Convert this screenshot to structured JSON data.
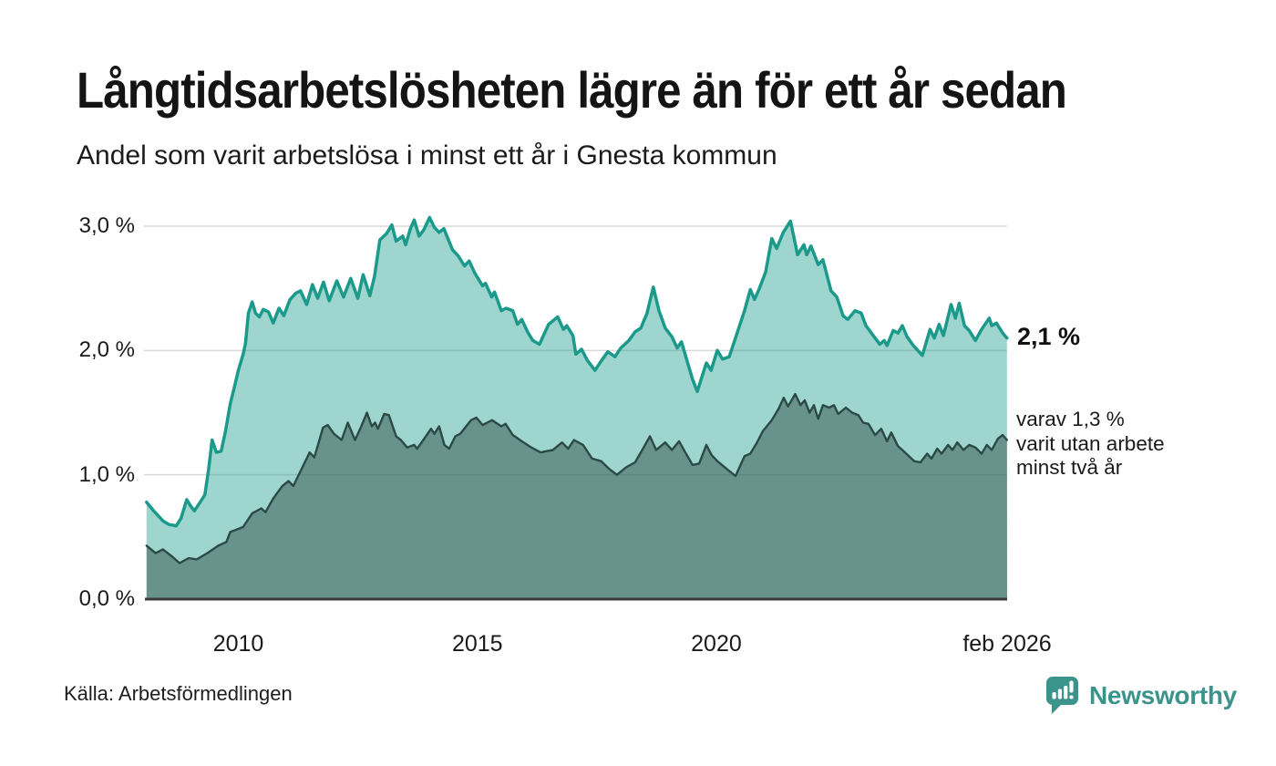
{
  "header": {
    "title": "Långtidsarbetslösheten lägre än för ett år sedan",
    "subtitle": "Andel som varit arbetslösa i minst ett år i Gnesta kommun"
  },
  "chart_data": {
    "type": "area",
    "title": "Långtidsarbetslösheten lägre än för ett år sedan",
    "subtitle": "Andel som varit arbetslösa i minst ett år i Gnesta kommun",
    "x_domain": [
      2008.083,
      2026.083
    ],
    "y_domain": [
      0,
      3
    ],
    "grid": "horizontal",
    "legend_position": "none",
    "colors": {
      "grid": "#d9d9d9",
      "axis": "#3b3b3b",
      "background": "#ffffff"
    },
    "y_ticks": [
      {
        "value": 0,
        "label": "0,0 %"
      },
      {
        "value": 1,
        "label": "1,0 %"
      },
      {
        "value": 2,
        "label": "2,0 %"
      },
      {
        "value": 3,
        "label": "3,0 %"
      }
    ],
    "x_ticks": [
      {
        "t": 2010,
        "label": "2010"
      },
      {
        "t": 2015,
        "label": "2015"
      },
      {
        "t": 2020,
        "label": "2020"
      },
      {
        "t": 2026.083,
        "label": "feb 2026"
      }
    ],
    "annotations": {
      "total": "2,1 %",
      "detail_line1": "varav 1,3 %",
      "detail_line2": "varit utan arbete",
      "detail_line3": "minst två år"
    },
    "series": [
      {
        "name": "Andel arbetslösa minst ett år",
        "latest_value": 2.1,
        "color": "#1b9a8c",
        "fill": "#1b9a8c",
        "fill_opacity": 0.42,
        "stroke_width": 3.5,
        "points": [
          [
            2008.08,
            0.78
          ],
          [
            2008.25,
            0.7
          ],
          [
            2008.42,
            0.63
          ],
          [
            2008.55,
            0.6
          ],
          [
            2008.7,
            0.59
          ],
          [
            2008.8,
            0.65
          ],
          [
            2008.92,
            0.8
          ],
          [
            2009.0,
            0.75
          ],
          [
            2009.08,
            0.71
          ],
          [
            2009.2,
            0.78
          ],
          [
            2009.3,
            0.84
          ],
          [
            2009.38,
            1.05
          ],
          [
            2009.45,
            1.28
          ],
          [
            2009.54,
            1.18
          ],
          [
            2009.64,
            1.19
          ],
          [
            2009.73,
            1.35
          ],
          [
            2009.83,
            1.57
          ],
          [
            2009.92,
            1.71
          ],
          [
            2010.0,
            1.84
          ],
          [
            2010.1,
            1.97
          ],
          [
            2010.15,
            2.06
          ],
          [
            2010.21,
            2.3
          ],
          [
            2010.29,
            2.39
          ],
          [
            2010.36,
            2.3
          ],
          [
            2010.44,
            2.27
          ],
          [
            2010.52,
            2.33
          ],
          [
            2010.63,
            2.31
          ],
          [
            2010.73,
            2.22
          ],
          [
            2010.85,
            2.34
          ],
          [
            2010.95,
            2.28
          ],
          [
            2011.08,
            2.41
          ],
          [
            2011.2,
            2.46
          ],
          [
            2011.3,
            2.48
          ],
          [
            2011.43,
            2.37
          ],
          [
            2011.55,
            2.53
          ],
          [
            2011.66,
            2.42
          ],
          [
            2011.78,
            2.55
          ],
          [
            2011.9,
            2.4
          ],
          [
            2012.06,
            2.56
          ],
          [
            2012.2,
            2.43
          ],
          [
            2012.35,
            2.58
          ],
          [
            2012.5,
            2.42
          ],
          [
            2012.61,
            2.61
          ],
          [
            2012.75,
            2.44
          ],
          [
            2012.85,
            2.6
          ],
          [
            2012.96,
            2.89
          ],
          [
            2013.1,
            2.94
          ],
          [
            2013.21,
            3.01
          ],
          [
            2013.3,
            2.88
          ],
          [
            2013.44,
            2.92
          ],
          [
            2013.5,
            2.85
          ],
          [
            2013.6,
            2.98
          ],
          [
            2013.68,
            3.05
          ],
          [
            2013.78,
            2.92
          ],
          [
            2013.88,
            2.97
          ],
          [
            2014.0,
            3.07
          ],
          [
            2014.1,
            2.99
          ],
          [
            2014.2,
            2.95
          ],
          [
            2014.3,
            2.98
          ],
          [
            2014.48,
            2.81
          ],
          [
            2014.6,
            2.76
          ],
          [
            2014.73,
            2.68
          ],
          [
            2014.83,
            2.72
          ],
          [
            2014.95,
            2.62
          ],
          [
            2015.11,
            2.52
          ],
          [
            2015.17,
            2.54
          ],
          [
            2015.3,
            2.43
          ],
          [
            2015.36,
            2.47
          ],
          [
            2015.5,
            2.32
          ],
          [
            2015.6,
            2.34
          ],
          [
            2015.74,
            2.32
          ],
          [
            2015.84,
            2.21
          ],
          [
            2015.93,
            2.25
          ],
          [
            2016.05,
            2.15
          ],
          [
            2016.16,
            2.08
          ],
          [
            2016.3,
            2.05
          ],
          [
            2016.49,
            2.21
          ],
          [
            2016.68,
            2.27
          ],
          [
            2016.8,
            2.17
          ],
          [
            2016.87,
            2.2
          ],
          [
            2017.0,
            2.12
          ],
          [
            2017.06,
            1.97
          ],
          [
            2017.18,
            2.01
          ],
          [
            2017.3,
            1.92
          ],
          [
            2017.46,
            1.84
          ],
          [
            2017.6,
            1.92
          ],
          [
            2017.73,
            1.99
          ],
          [
            2017.88,
            1.95
          ],
          [
            2018.0,
            2.02
          ],
          [
            2018.17,
            2.08
          ],
          [
            2018.3,
            2.15
          ],
          [
            2018.42,
            2.18
          ],
          [
            2018.55,
            2.3
          ],
          [
            2018.68,
            2.51
          ],
          [
            2018.8,
            2.32
          ],
          [
            2018.93,
            2.18
          ],
          [
            2019.07,
            2.11
          ],
          [
            2019.18,
            2.02
          ],
          [
            2019.27,
            2.07
          ],
          [
            2019.4,
            1.9
          ],
          [
            2019.5,
            1.77
          ],
          [
            2019.6,
            1.67
          ],
          [
            2019.79,
            1.9
          ],
          [
            2019.89,
            1.84
          ],
          [
            2020.02,
            2.0
          ],
          [
            2020.13,
            1.93
          ],
          [
            2020.27,
            1.95
          ],
          [
            2020.46,
            2.17
          ],
          [
            2020.59,
            2.32
          ],
          [
            2020.71,
            2.49
          ],
          [
            2020.8,
            2.41
          ],
          [
            2020.9,
            2.5
          ],
          [
            2021.03,
            2.63
          ],
          [
            2021.16,
            2.9
          ],
          [
            2021.26,
            2.82
          ],
          [
            2021.4,
            2.95
          ],
          [
            2021.55,
            3.04
          ],
          [
            2021.7,
            2.77
          ],
          [
            2021.83,
            2.85
          ],
          [
            2021.89,
            2.77
          ],
          [
            2021.98,
            2.84
          ],
          [
            2022.13,
            2.69
          ],
          [
            2022.23,
            2.73
          ],
          [
            2022.4,
            2.48
          ],
          [
            2022.52,
            2.43
          ],
          [
            2022.65,
            2.28
          ],
          [
            2022.75,
            2.25
          ],
          [
            2022.9,
            2.32
          ],
          [
            2023.03,
            2.3
          ],
          [
            2023.13,
            2.2
          ],
          [
            2023.32,
            2.1
          ],
          [
            2023.42,
            2.05
          ],
          [
            2023.51,
            2.08
          ],
          [
            2023.57,
            2.04
          ],
          [
            2023.7,
            2.16
          ],
          [
            2023.8,
            2.14
          ],
          [
            2023.89,
            2.2
          ],
          [
            2023.99,
            2.11
          ],
          [
            2024.12,
            2.04
          ],
          [
            2024.31,
            1.96
          ],
          [
            2024.47,
            2.17
          ],
          [
            2024.56,
            2.1
          ],
          [
            2024.66,
            2.21
          ],
          [
            2024.75,
            2.12
          ],
          [
            2024.91,
            2.37
          ],
          [
            2025.0,
            2.26
          ],
          [
            2025.08,
            2.38
          ],
          [
            2025.19,
            2.2
          ],
          [
            2025.29,
            2.16
          ],
          [
            2025.42,
            2.08
          ],
          [
            2025.55,
            2.17
          ],
          [
            2025.71,
            2.26
          ],
          [
            2025.76,
            2.2
          ],
          [
            2025.86,
            2.22
          ],
          [
            2025.99,
            2.14
          ],
          [
            2026.08,
            2.1
          ]
        ]
      },
      {
        "name": "varav utan arbete minst två år",
        "latest_value": 1.3,
        "color": "#2b4945",
        "fill": "#2b4945",
        "fill_opacity": 0.47,
        "stroke_width": 2.4,
        "points": [
          [
            2008.08,
            0.43
          ],
          [
            2008.27,
            0.37
          ],
          [
            2008.42,
            0.4
          ],
          [
            2008.62,
            0.34
          ],
          [
            2008.77,
            0.29
          ],
          [
            2008.96,
            0.33
          ],
          [
            2009.13,
            0.32
          ],
          [
            2009.35,
            0.37
          ],
          [
            2009.58,
            0.43
          ],
          [
            2009.75,
            0.46
          ],
          [
            2009.83,
            0.54
          ],
          [
            2010.1,
            0.58
          ],
          [
            2010.29,
            0.69
          ],
          [
            2010.48,
            0.73
          ],
          [
            2010.57,
            0.7
          ],
          [
            2010.73,
            0.81
          ],
          [
            2010.92,
            0.91
          ],
          [
            2011.05,
            0.95
          ],
          [
            2011.15,
            0.91
          ],
          [
            2011.34,
            1.06
          ],
          [
            2011.49,
            1.18
          ],
          [
            2011.59,
            1.14
          ],
          [
            2011.77,
            1.38
          ],
          [
            2011.87,
            1.4
          ],
          [
            2012.0,
            1.33
          ],
          [
            2012.16,
            1.28
          ],
          [
            2012.29,
            1.42
          ],
          [
            2012.44,
            1.28
          ],
          [
            2012.56,
            1.38
          ],
          [
            2012.69,
            1.5
          ],
          [
            2012.79,
            1.39
          ],
          [
            2012.86,
            1.42
          ],
          [
            2012.92,
            1.37
          ],
          [
            2013.05,
            1.49
          ],
          [
            2013.15,
            1.48
          ],
          [
            2013.3,
            1.31
          ],
          [
            2013.4,
            1.28
          ],
          [
            2013.53,
            1.22
          ],
          [
            2013.68,
            1.24
          ],
          [
            2013.74,
            1.21
          ],
          [
            2013.87,
            1.28
          ],
          [
            2014.03,
            1.37
          ],
          [
            2014.1,
            1.33
          ],
          [
            2014.2,
            1.39
          ],
          [
            2014.31,
            1.24
          ],
          [
            2014.41,
            1.21
          ],
          [
            2014.54,
            1.31
          ],
          [
            2014.64,
            1.33
          ],
          [
            2014.87,
            1.44
          ],
          [
            2014.98,
            1.46
          ],
          [
            2015.11,
            1.4
          ],
          [
            2015.31,
            1.44
          ],
          [
            2015.5,
            1.39
          ],
          [
            2015.59,
            1.41
          ],
          [
            2015.74,
            1.32
          ],
          [
            2015.93,
            1.27
          ],
          [
            2016.13,
            1.22
          ],
          [
            2016.32,
            1.18
          ],
          [
            2016.58,
            1.2
          ],
          [
            2016.77,
            1.26
          ],
          [
            2016.9,
            1.21
          ],
          [
            2017.02,
            1.28
          ],
          [
            2017.21,
            1.24
          ],
          [
            2017.4,
            1.13
          ],
          [
            2017.59,
            1.11
          ],
          [
            2017.75,
            1.05
          ],
          [
            2017.92,
            1.0
          ],
          [
            2018.11,
            1.06
          ],
          [
            2018.3,
            1.1
          ],
          [
            2018.45,
            1.2
          ],
          [
            2018.61,
            1.31
          ],
          [
            2018.74,
            1.2
          ],
          [
            2018.93,
            1.26
          ],
          [
            2019.07,
            1.2
          ],
          [
            2019.22,
            1.27
          ],
          [
            2019.35,
            1.18
          ],
          [
            2019.5,
            1.08
          ],
          [
            2019.64,
            1.09
          ],
          [
            2019.79,
            1.24
          ],
          [
            2019.9,
            1.16
          ],
          [
            2020.02,
            1.11
          ],
          [
            2020.21,
            1.05
          ],
          [
            2020.4,
            0.99
          ],
          [
            2020.59,
            1.15
          ],
          [
            2020.71,
            1.17
          ],
          [
            2020.85,
            1.26
          ],
          [
            2020.97,
            1.35
          ],
          [
            2021.16,
            1.44
          ],
          [
            2021.3,
            1.53
          ],
          [
            2021.41,
            1.62
          ],
          [
            2021.5,
            1.55
          ],
          [
            2021.65,
            1.65
          ],
          [
            2021.76,
            1.56
          ],
          [
            2021.85,
            1.6
          ],
          [
            2021.95,
            1.5
          ],
          [
            2022.04,
            1.56
          ],
          [
            2022.13,
            1.45
          ],
          [
            2022.23,
            1.56
          ],
          [
            2022.36,
            1.54
          ],
          [
            2022.46,
            1.56
          ],
          [
            2022.55,
            1.49
          ],
          [
            2022.71,
            1.54
          ],
          [
            2022.84,
            1.5
          ],
          [
            2022.97,
            1.48
          ],
          [
            2023.07,
            1.42
          ],
          [
            2023.18,
            1.41
          ],
          [
            2023.32,
            1.32
          ],
          [
            2023.45,
            1.37
          ],
          [
            2023.57,
            1.27
          ],
          [
            2023.66,
            1.34
          ],
          [
            2023.8,
            1.23
          ],
          [
            2023.89,
            1.2
          ],
          [
            2024.03,
            1.15
          ],
          [
            2024.14,
            1.11
          ],
          [
            2024.27,
            1.1
          ],
          [
            2024.41,
            1.17
          ],
          [
            2024.5,
            1.13
          ],
          [
            2024.62,
            1.21
          ],
          [
            2024.71,
            1.17
          ],
          [
            2024.85,
            1.24
          ],
          [
            2024.94,
            1.2
          ],
          [
            2025.04,
            1.26
          ],
          [
            2025.17,
            1.2
          ],
          [
            2025.29,
            1.24
          ],
          [
            2025.42,
            1.22
          ],
          [
            2025.55,
            1.17
          ],
          [
            2025.66,
            1.24
          ],
          [
            2025.76,
            1.2
          ],
          [
            2025.89,
            1.29
          ],
          [
            2025.99,
            1.32
          ],
          [
            2026.08,
            1.28
          ]
        ]
      }
    ]
  },
  "footer": {
    "source": "Källa: Arbetsförmedlingen",
    "logo_text": "Newsworthy",
    "logo_color": "#3a948b"
  }
}
